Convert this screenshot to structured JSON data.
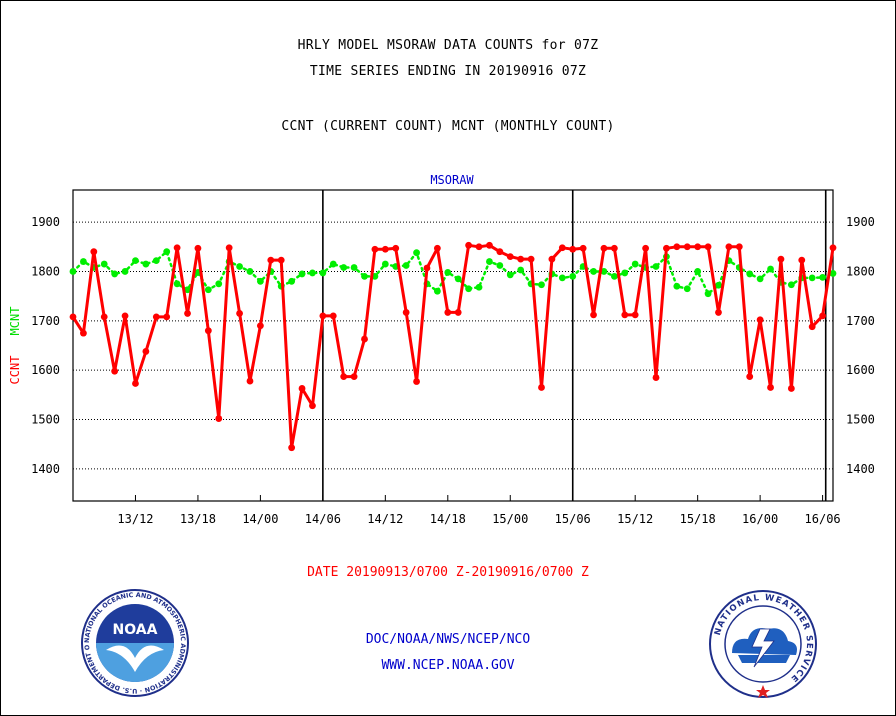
{
  "header": {
    "title_line1": "HRLY MODEL MSORAW DATA COUNTS for 07Z",
    "title_line2": "TIME SERIES ENDING IN 20190916 07Z",
    "subtitle": "CCNT (CURRENT COUNT) MCNT (MONTHLY COUNT)"
  },
  "footer": {
    "date_range": "DATE 20190913/0700 Z-20190916/0700 Z",
    "org": "DOC/NOAA/NWS/NCEP/NCO",
    "url": "WWW.NCEP.NOAA.GOV"
  },
  "logos": {
    "noaa_text": "NOAA",
    "noaa_ring_text": "NATIONAL OCEANIC AND ATMOSPHERIC ADMINISTRATION · U.S. DEPARTMENT OF COMMERCE ·",
    "nws_ring_text": "NATIONAL WEATHER SERVICE"
  },
  "colors": {
    "ccnt": "#ff0000",
    "mcnt": "#00ee00",
    "label_blue": "#0000cc"
  },
  "chart_data": {
    "type": "line",
    "title": "MSORAW",
    "ylabel_left": "CCNT",
    "ylabel_right": "MCNT",
    "ylim": [
      1335,
      1965
    ],
    "y_ticks": [
      1400,
      1500,
      1600,
      1700,
      1800,
      1900
    ],
    "x_ticks": [
      "13/12",
      "13/18",
      "14/00",
      "14/06",
      "14/12",
      "14/18",
      "15/00",
      "15/06",
      "15/12",
      "15/18",
      "16/00",
      "16/06"
    ],
    "x_tick_hours": [
      5,
      11,
      17,
      23,
      29,
      35,
      41,
      47,
      53,
      59,
      65,
      71
    ],
    "x_range_hours": [
      -1,
      72
    ],
    "vertical_markers_hours": [
      23,
      47,
      71.3
    ],
    "grid": true,
    "series": [
      {
        "name": "CCNT",
        "x_hours": [
          -1,
          0,
          1,
          2,
          3,
          4,
          5,
          6,
          7,
          8,
          9,
          10,
          11,
          12,
          13,
          14,
          15,
          16,
          17,
          18,
          19,
          20,
          21,
          22,
          23,
          24,
          25,
          26,
          27,
          28,
          29,
          30,
          31,
          32,
          33,
          34,
          35,
          36,
          37,
          38,
          39,
          40,
          41,
          42,
          43,
          44,
          45,
          46,
          47,
          48,
          49,
          50,
          51,
          52,
          53,
          54,
          55,
          56,
          57,
          58,
          59,
          60,
          61,
          62,
          63,
          64,
          65,
          66,
          67,
          68,
          69,
          70,
          71,
          72
        ],
        "values": [
          1708,
          1675,
          1840,
          1708,
          1598,
          1710,
          1573,
          1638,
          1708,
          1708,
          1848,
          1715,
          1847,
          1680,
          1502,
          1848,
          1715,
          1578,
          1690,
          1823,
          1823,
          1443,
          1563,
          1528,
          1710,
          1710,
          1587,
          1587,
          1663,
          1845,
          1845,
          1847,
          1717,
          1577,
          1807,
          1847,
          1717,
          1717,
          1853,
          1850,
          1853,
          1840,
          1830,
          1825,
          1825,
          1565,
          1825,
          1848,
          1845,
          1847,
          1712,
          1847,
          1847,
          1712,
          1712,
          1847,
          1585,
          1847,
          1850,
          1850,
          1850,
          1850,
          1717,
          1850,
          1850,
          1587,
          1702,
          1565,
          1825,
          1563,
          1823,
          1688,
          1710,
          1848
        ]
      },
      {
        "name": "MCNT",
        "x_hours": [
          -1,
          0,
          1,
          2,
          3,
          4,
          5,
          6,
          7,
          8,
          9,
          10,
          11,
          12,
          13,
          14,
          15,
          16,
          17,
          18,
          19,
          20,
          21,
          22,
          23,
          24,
          25,
          26,
          27,
          28,
          29,
          30,
          31,
          32,
          33,
          34,
          35,
          36,
          37,
          38,
          39,
          40,
          41,
          42,
          43,
          44,
          45,
          46,
          47,
          48,
          49,
          50,
          51,
          52,
          53,
          54,
          55,
          56,
          57,
          58,
          59,
          60,
          61,
          62,
          63,
          64,
          65,
          66,
          67,
          68,
          69,
          70,
          71,
          72
        ],
        "values": [
          1800,
          1820,
          1808,
          1815,
          1795,
          1800,
          1822,
          1815,
          1822,
          1840,
          1775,
          1763,
          1798,
          1763,
          1775,
          1820,
          1810,
          1800,
          1780,
          1800,
          1770,
          1780,
          1795,
          1797,
          1797,
          1815,
          1808,
          1808,
          1790,
          1790,
          1815,
          1810,
          1812,
          1838,
          1775,
          1760,
          1798,
          1785,
          1765,
          1768,
          1820,
          1812,
          1793,
          1803,
          1775,
          1773,
          1795,
          1787,
          1790,
          1810,
          1800,
          1800,
          1790,
          1797,
          1815,
          1808,
          1810,
          1830,
          1770,
          1765,
          1800,
          1755,
          1772,
          1822,
          1808,
          1795,
          1785,
          1805,
          1778,
          1773,
          1787,
          1787,
          1788,
          1796
        ]
      }
    ]
  }
}
